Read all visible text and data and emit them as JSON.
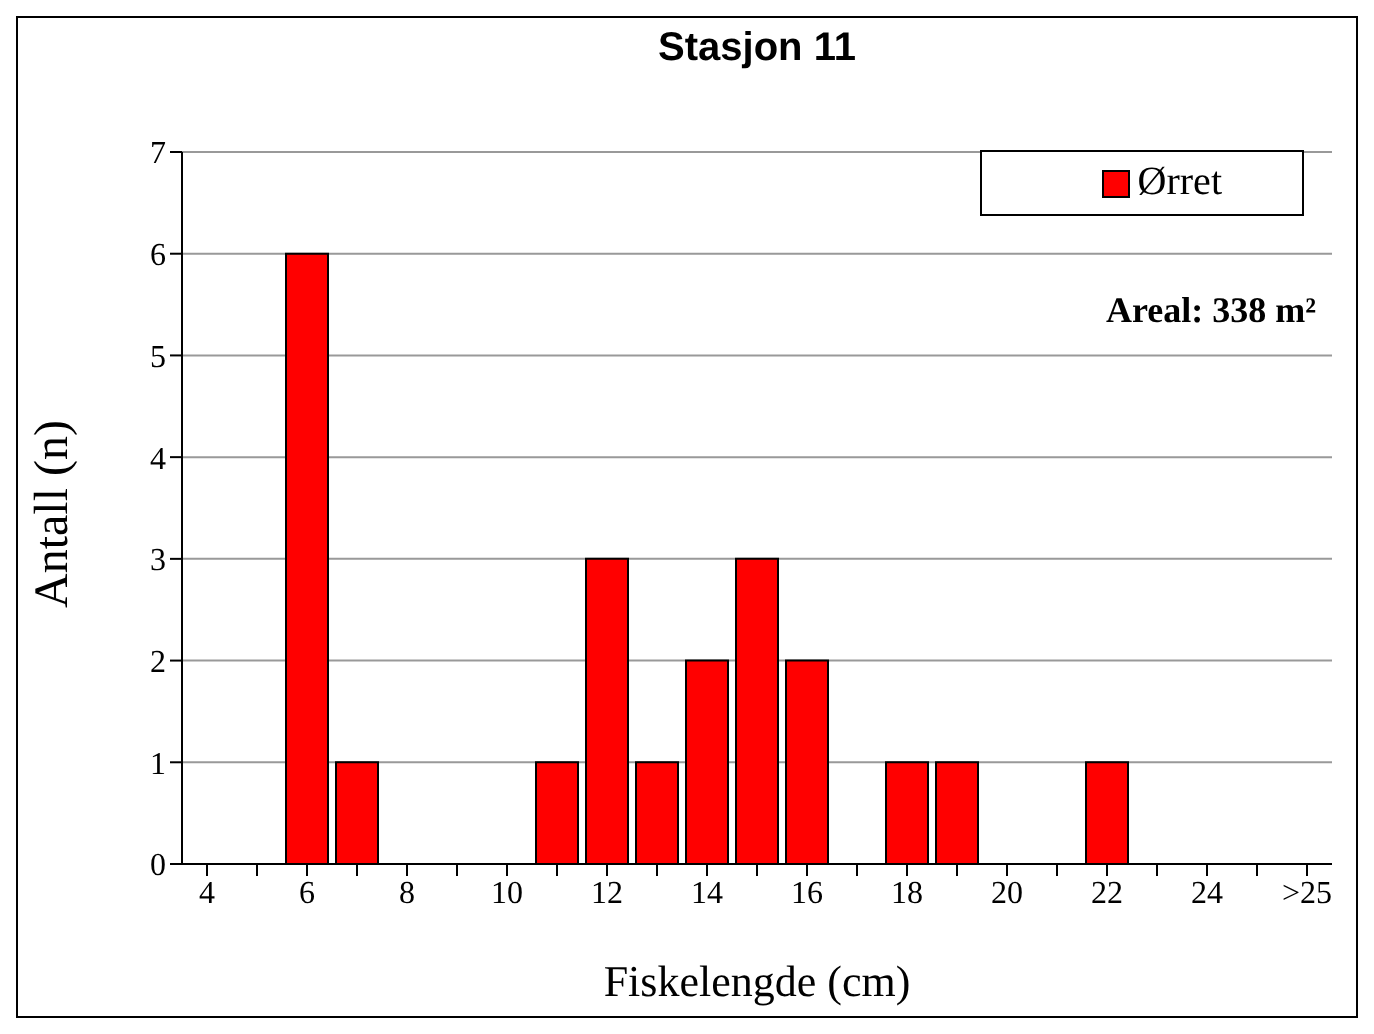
{
  "chart_data": {
    "type": "bar",
    "title": "Stasjon 11",
    "xlabel": "Fiskelengde  (cm)",
    "ylabel": "Antall (n)",
    "categories": [
      "4",
      null,
      "6",
      null,
      "8",
      null,
      "10",
      null,
      "12",
      null,
      "14",
      null,
      "16",
      null,
      "18",
      null,
      "20",
      null,
      "22",
      null,
      "24",
      null,
      ">25"
    ],
    "series": [
      {
        "name": "Ørret",
        "color": "#ff0000",
        "values": [
          0,
          0,
          6,
          1,
          0,
          0,
          0,
          1,
          3,
          1,
          2,
          3,
          2,
          0,
          1,
          1,
          0,
          0,
          1,
          0,
          0,
          0,
          0
        ]
      }
    ],
    "ylim": [
      0,
      7
    ],
    "yticks": [
      0,
      1,
      2,
      3,
      4,
      5,
      6,
      7
    ],
    "grid": "y",
    "legend": "top right",
    "annotations": [
      "Areal: 338 m²"
    ]
  }
}
